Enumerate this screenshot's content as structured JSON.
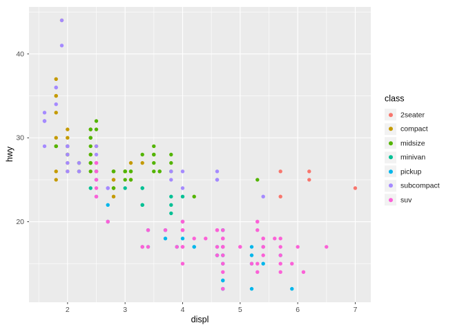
{
  "chart_data": {
    "type": "scatter",
    "title": "",
    "xlabel": "displ",
    "ylabel": "hwy",
    "legend_title": "class",
    "legend_position": "right",
    "panel_background": "#EBEBEB",
    "grid_color": "#FFFFFF",
    "tick_label_color": "#4D4D4D",
    "tick_mark_color": "#333333",
    "legend_key_background": "#F2F2F2",
    "grid": true,
    "xlim": [
      1.33,
      7.27
    ],
    "ylim": [
      10.4,
      45.6
    ],
    "x_ticks": [
      2,
      3,
      4,
      5,
      6,
      7
    ],
    "y_ticks": [
      20,
      30,
      40
    ],
    "x_minor": [
      1.5,
      2.5,
      3.5,
      4.5,
      5.5,
      6.5
    ],
    "y_minor": [
      15,
      25,
      35,
      45
    ],
    "point_radius": 2.7,
    "series": [
      {
        "name": "2seater",
        "color": "#F8766D",
        "points": [
          [
            5.7,
            26
          ],
          [
            5.7,
            23
          ],
          [
            6.2,
            26
          ],
          [
            6.2,
            25
          ],
          [
            7.0,
            24
          ]
        ]
      },
      {
        "name": "compact",
        "color": "#C49A00",
        "points": [
          [
            1.8,
            29
          ],
          [
            1.8,
            29
          ],
          [
            2.0,
            31
          ],
          [
            2.0,
            30
          ],
          [
            2.8,
            26
          ],
          [
            2.8,
            26
          ],
          [
            3.1,
            27
          ],
          [
            1.8,
            26
          ],
          [
            1.8,
            25
          ],
          [
            2.0,
            28
          ],
          [
            2.0,
            27
          ],
          [
            2.8,
            25
          ],
          [
            2.8,
            25
          ],
          [
            3.1,
            25
          ],
          [
            3.1,
            25
          ],
          [
            2.2,
            26
          ],
          [
            2.2,
            27
          ],
          [
            2.4,
            28
          ],
          [
            2.4,
            31
          ],
          [
            3.0,
            26
          ],
          [
            3.0,
            26
          ],
          [
            3.3,
            27
          ],
          [
            1.8,
            30
          ],
          [
            1.8,
            33
          ],
          [
            1.8,
            35
          ],
          [
            1.8,
            35
          ],
          [
            1.8,
            37
          ],
          [
            2.0,
            29
          ],
          [
            2.0,
            29
          ],
          [
            2.0,
            28
          ],
          [
            2.0,
            29
          ],
          [
            2.8,
            24
          ],
          [
            1.9,
            44
          ],
          [
            2.0,
            29
          ],
          [
            2.0,
            26
          ],
          [
            2.0,
            29
          ],
          [
            2.0,
            29
          ],
          [
            2.5,
            29
          ],
          [
            2.5,
            29
          ],
          [
            2.8,
            24
          ],
          [
            2.8,
            23
          ]
        ]
      },
      {
        "name": "midsize",
        "color": "#53B400",
        "points": [
          [
            2.8,
            24
          ],
          [
            3.1,
            25
          ],
          [
            4.2,
            23
          ],
          [
            2.4,
            27
          ],
          [
            2.4,
            30
          ],
          [
            3.1,
            26
          ],
          [
            3.5,
            29
          ],
          [
            3.6,
            26
          ],
          [
            2.4,
            26
          ],
          [
            2.4,
            27
          ],
          [
            2.4,
            30
          ],
          [
            2.4,
            31
          ],
          [
            2.5,
            26
          ],
          [
            2.5,
            26
          ],
          [
            3.3,
            28
          ],
          [
            2.4,
            29
          ],
          [
            2.4,
            27
          ],
          [
            2.5,
            31
          ],
          [
            2.5,
            32
          ],
          [
            3.5,
            27
          ],
          [
            3.5,
            26
          ],
          [
            3.0,
            26
          ],
          [
            3.0,
            25
          ],
          [
            3.5,
            28
          ],
          [
            3.1,
            26
          ],
          [
            3.8,
            26
          ],
          [
            3.8,
            27
          ],
          [
            3.8,
            28
          ],
          [
            5.3,
            25
          ],
          [
            2.2,
            26
          ],
          [
            2.2,
            27
          ],
          [
            2.4,
            28
          ],
          [
            2.4,
            31
          ],
          [
            3.0,
            26
          ],
          [
            3.0,
            26
          ],
          [
            3.5,
            28
          ],
          [
            1.8,
            29
          ],
          [
            1.8,
            29
          ],
          [
            2.0,
            28
          ],
          [
            2.0,
            29
          ],
          [
            2.8,
            26
          ],
          [
            2.8,
            26
          ],
          [
            3.6,
            26
          ]
        ]
      },
      {
        "name": "minivan",
        "color": "#00C094",
        "points": [
          [
            2.4,
            24
          ],
          [
            3.0,
            24
          ],
          [
            3.3,
            22
          ],
          [
            3.3,
            22
          ],
          [
            3.3,
            24
          ],
          [
            3.3,
            24
          ],
          [
            3.3,
            17
          ],
          [
            3.8,
            22
          ],
          [
            3.8,
            21
          ],
          [
            3.8,
            23
          ],
          [
            4.0,
            23
          ]
        ]
      },
      {
        "name": "pickup",
        "color": "#00B6EB",
        "points": [
          [
            3.7,
            19
          ],
          [
            3.7,
            18
          ],
          [
            3.9,
            17
          ],
          [
            3.9,
            17
          ],
          [
            4.7,
            19
          ],
          [
            4.7,
            19
          ],
          [
            4.7,
            12
          ],
          [
            5.2,
            17
          ],
          [
            5.2,
            15
          ],
          [
            4.7,
            17
          ],
          [
            4.7,
            15
          ],
          [
            4.7,
            13
          ],
          [
            4.7,
            13
          ],
          [
            4.7,
            17
          ],
          [
            4.7,
            16
          ],
          [
            4.7,
            16
          ],
          [
            4.7,
            12
          ],
          [
            5.2,
            16
          ],
          [
            5.2,
            12
          ],
          [
            5.7,
            16
          ],
          [
            5.9,
            12
          ],
          [
            4.2,
            17
          ],
          [
            4.2,
            17
          ],
          [
            4.6,
            16
          ],
          [
            4.6,
            16
          ],
          [
            4.6,
            17
          ],
          [
            5.4,
            15
          ],
          [
            5.4,
            17
          ],
          [
            2.7,
            20
          ],
          [
            2.7,
            20
          ],
          [
            2.7,
            22
          ],
          [
            3.4,
            17
          ],
          [
            3.4,
            19
          ],
          [
            4.0,
            18
          ],
          [
            4.0,
            20
          ]
        ]
      },
      {
        "name": "subcompact",
        "color": "#A58AFF",
        "points": [
          [
            1.6,
            33
          ],
          [
            1.6,
            32
          ],
          [
            1.6,
            32
          ],
          [
            1.6,
            29
          ],
          [
            1.6,
            32
          ],
          [
            1.8,
            34
          ],
          [
            1.8,
            36
          ],
          [
            1.8,
            36
          ],
          [
            2.0,
            29
          ],
          [
            3.8,
            26
          ],
          [
            3.8,
            25
          ],
          [
            4.0,
            26
          ],
          [
            4.0,
            24
          ],
          [
            4.6,
            25
          ],
          [
            4.6,
            25
          ],
          [
            4.6,
            25
          ],
          [
            4.6,
            26
          ],
          [
            5.4,
            23
          ],
          [
            2.0,
            26
          ],
          [
            2.0,
            28
          ],
          [
            2.0,
            27
          ],
          [
            2.7,
            24
          ],
          [
            2.7,
            24
          ],
          [
            2.7,
            24
          ],
          [
            1.9,
            44
          ],
          [
            1.9,
            41
          ],
          [
            2.0,
            29
          ],
          [
            2.0,
            29
          ],
          [
            2.5,
            28
          ],
          [
            2.5,
            29
          ],
          [
            2.2,
            26
          ],
          [
            2.2,
            27
          ],
          [
            2.5,
            25
          ],
          [
            2.5,
            25
          ],
          [
            2.5,
            27
          ],
          [
            2.5,
            25
          ],
          [
            2.5,
            26
          ],
          [
            2.5,
            23
          ]
        ]
      },
      {
        "name": "suv",
        "color": "#FB61D7",
        "points": [
          [
            5.3,
            20
          ],
          [
            5.3,
            15
          ],
          [
            5.3,
            20
          ],
          [
            5.7,
            17
          ],
          [
            6.0,
            17
          ],
          [
            5.3,
            14
          ],
          [
            5.3,
            19
          ],
          [
            5.7,
            14
          ],
          [
            6.5,
            17
          ],
          [
            3.9,
            17
          ],
          [
            4.7,
            17
          ],
          [
            4.7,
            12
          ],
          [
            4.7,
            17
          ],
          [
            4.7,
            16
          ],
          [
            4.7,
            18
          ],
          [
            5.2,
            15
          ],
          [
            5.7,
            16
          ],
          [
            5.9,
            15
          ],
          [
            4.6,
            17
          ],
          [
            5.4,
            17
          ],
          [
            5.4,
            18
          ],
          [
            4.0,
            17
          ],
          [
            4.0,
            17
          ],
          [
            4.0,
            19
          ],
          [
            4.0,
            19
          ],
          [
            4.6,
            19
          ],
          [
            5.0,
            17
          ],
          [
            3.7,
            19
          ],
          [
            4.0,
            20
          ],
          [
            4.7,
            14
          ],
          [
            4.7,
            15
          ],
          [
            4.7,
            18
          ],
          [
            4.7,
            19
          ],
          [
            5.7,
            15
          ],
          [
            6.1,
            14
          ],
          [
            4.0,
            15
          ],
          [
            4.2,
            18
          ],
          [
            4.4,
            18
          ],
          [
            4.6,
            16
          ],
          [
            5.4,
            17
          ],
          [
            5.4,
            16
          ],
          [
            5.4,
            18
          ],
          [
            4.0,
            17
          ],
          [
            4.0,
            19
          ],
          [
            4.6,
            19
          ],
          [
            5.0,
            17
          ],
          [
            3.3,
            17
          ],
          [
            3.3,
            17
          ],
          [
            4.0,
            20
          ],
          [
            5.6,
            18
          ],
          [
            2.5,
            26
          ],
          [
            2.5,
            27
          ],
          [
            2.5,
            23
          ],
          [
            2.5,
            24
          ],
          [
            2.5,
            25
          ],
          [
            2.5,
            27
          ],
          [
            2.7,
            20
          ],
          [
            2.7,
            20
          ],
          [
            3.4,
            19
          ],
          [
            3.4,
            17
          ],
          [
            4.0,
            20
          ],
          [
            4.7,
            17
          ],
          [
            4.7,
            18
          ],
          [
            5.7,
            18
          ]
        ]
      }
    ]
  }
}
